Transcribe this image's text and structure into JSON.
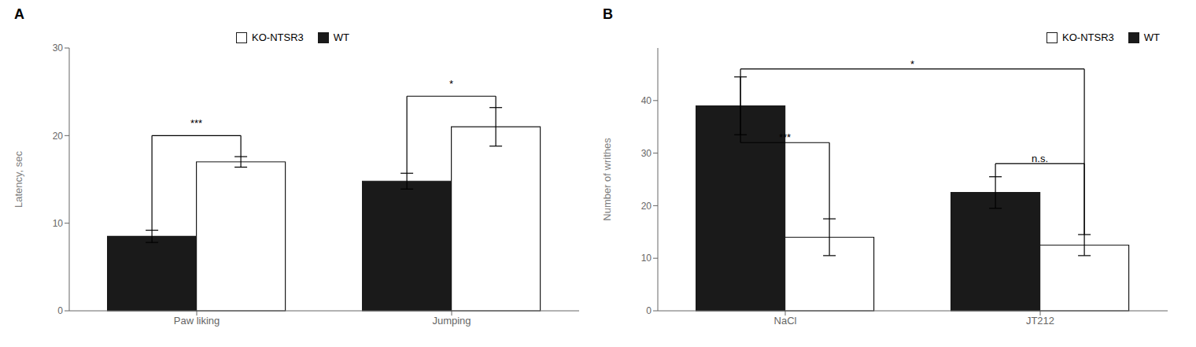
{
  "chart_data": [
    {
      "type": "bar",
      "title": "A",
      "y_label": "Latency, sec",
      "categories": [
        "Paw liking",
        "Jumping"
      ],
      "series": [
        {
          "name": "WT",
          "color": "#1a1a1a",
          "values": [
            8.5,
            14.8
          ],
          "errors": [
            0.7,
            0.9
          ]
        },
        {
          "name": "KO-NTSR3",
          "color": "#ffffff",
          "values": [
            17.0,
            21.0
          ],
          "errors": [
            0.6,
            2.2
          ]
        }
      ],
      "ylim": [
        0,
        30
      ],
      "yticks": [
        0,
        10,
        20,
        30
      ],
      "legend": "upper center",
      "annotations": [
        {
          "text": "***",
          "y": 20.0,
          "text_y": 21.0,
          "from": {
            "category": "Paw liking",
            "series": "WT"
          },
          "to": {
            "category": "Paw liking",
            "series": "KO-NTSR3"
          }
        },
        {
          "text": "*",
          "y": 24.5,
          "text_y": 25.5,
          "from": {
            "category": "Jumping",
            "series": "WT"
          },
          "to": {
            "category": "Jumping",
            "series": "KO-NTSR3"
          }
        }
      ]
    },
    {
      "type": "bar",
      "title": "B",
      "y_label": "Number of writhes",
      "categories": [
        "NaCl",
        "JT212"
      ],
      "series": [
        {
          "name": "WT",
          "color": "#1a1a1a",
          "values": [
            39.0,
            22.5
          ],
          "errors": [
            5.5,
            3.0
          ]
        },
        {
          "name": "KO-NTSR3",
          "color": "#ffffff",
          "values": [
            14.0,
            12.5
          ],
          "errors": [
            3.5,
            2.0
          ]
        }
      ],
      "ylim": [
        0,
        50
      ],
      "yticks": [
        0,
        10,
        20,
        30,
        40
      ],
      "legend": "upper right",
      "annotations": [
        {
          "text": "***",
          "y": 32.0,
          "text_y": 32.3,
          "from": {
            "category": "NaCl",
            "series": "WT"
          },
          "to": {
            "category": "NaCl",
            "series": "KO-NTSR3"
          }
        },
        {
          "text": "*",
          "y": 46.0,
          "text_y": 46.3,
          "from": {
            "category": "NaCl",
            "series": "WT"
          },
          "to": {
            "category": "JT212",
            "series": "KO-NTSR3"
          }
        },
        {
          "text": "n.s.",
          "y": 28.0,
          "text_y": 28.3,
          "from": {
            "category": "JT212",
            "series": "WT"
          },
          "to": {
            "category": "JT212",
            "series": "KO-NTSR3"
          }
        }
      ]
    }
  ]
}
